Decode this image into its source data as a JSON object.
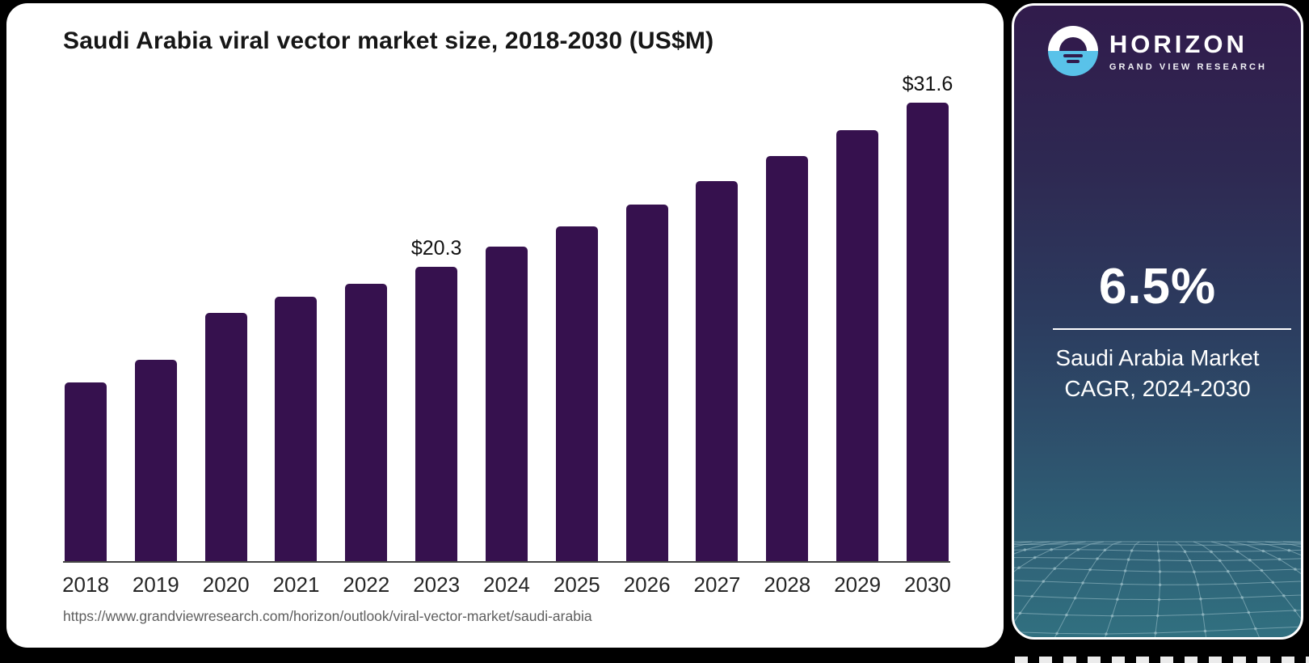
{
  "chart_data": {
    "type": "bar",
    "title": "Saudi Arabia viral vector market size, 2018-2030 (US$M)",
    "categories": [
      "2018",
      "2019",
      "2020",
      "2021",
      "2022",
      "2023",
      "2024",
      "2025",
      "2026",
      "2027",
      "2028",
      "2029",
      "2030"
    ],
    "values": [
      12.3,
      13.9,
      17.1,
      18.2,
      19.1,
      20.3,
      21.7,
      23.1,
      24.6,
      26.2,
      27.9,
      29.7,
      31.6
    ],
    "unit": "US$M",
    "ylim": [
      0,
      33.6
    ],
    "grid": false,
    "legend": false,
    "bar_color": "#36114e",
    "value_labels": {
      "2023": "$20.3",
      "2030": "$31.6"
    }
  },
  "footer": {
    "source_url": "https://www.grandviewresearch.com/horizon/outlook/viral-vector-market/saudi-arabia"
  },
  "sidebar": {
    "brand": {
      "name": "HORIZON",
      "subtitle": "GRAND VIEW RESEARCH",
      "logo_icon": "horizon-sun-icon",
      "logo_accent_color": "#59c2e9"
    },
    "stat": {
      "value": "6.5%",
      "caption_line1": "Saudi Arabia Market",
      "caption_line2": "CAGR, 2024-2030"
    },
    "gradient_top": "#311b4c",
    "gradient_mid": "#2c3c5f",
    "gradient_bottom": "#317080"
  }
}
